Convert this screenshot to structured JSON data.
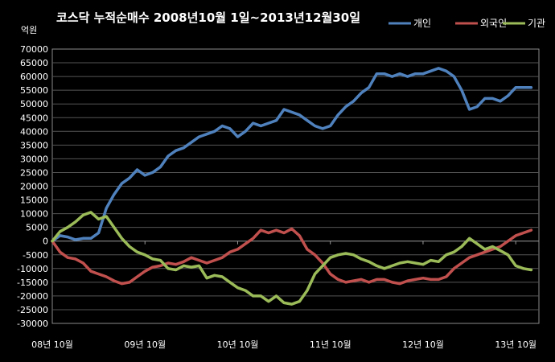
{
  "chart_data": {
    "type": "line",
    "title": "코스닥 누적순매수 2008년10월 1일~2013년12월30일",
    "unit_label": "억원",
    "ylim": [
      -30000,
      70000
    ],
    "y_ticks": [
      70000,
      65000,
      60000,
      55000,
      50000,
      45000,
      40000,
      35000,
      30000,
      25000,
      20000,
      15000,
      10000,
      5000,
      0,
      -5000,
      -10000,
      -15000,
      -20000,
      -25000,
      -30000
    ],
    "x_labels": [
      "08년 10월",
      "09년 10월",
      "10년 10월",
      "11년 10월",
      "12년 10월",
      "13년 10월"
    ],
    "legend_position": "top-right",
    "grid": true,
    "series": [
      {
        "name": "개인",
        "color": "#4f81bd",
        "points": [
          [
            "2008-10",
            0
          ],
          [
            "2008-11",
            2000
          ],
          [
            "2008-12",
            1500
          ],
          [
            "2009-01",
            500
          ],
          [
            "2009-02",
            1000
          ],
          [
            "2009-03",
            1000
          ],
          [
            "2009-04",
            3000
          ],
          [
            "2009-05",
            12000
          ],
          [
            "2009-06",
            17000
          ],
          [
            "2009-07",
            21000
          ],
          [
            "2009-08",
            23000
          ],
          [
            "2009-09",
            26000
          ],
          [
            "2009-10",
            24000
          ],
          [
            "2009-11",
            25000
          ],
          [
            "2009-12",
            27000
          ],
          [
            "2010-01",
            31000
          ],
          [
            "2010-02",
            33000
          ],
          [
            "2010-03",
            34000
          ],
          [
            "2010-04",
            36000
          ],
          [
            "2010-05",
            38000
          ],
          [
            "2010-06",
            39000
          ],
          [
            "2010-07",
            40000
          ],
          [
            "2010-08",
            42000
          ],
          [
            "2010-09",
            41000
          ],
          [
            "2010-10",
            38000
          ],
          [
            "2010-11",
            40000
          ],
          [
            "2010-12",
            43000
          ],
          [
            "2011-01",
            42000
          ],
          [
            "2011-02",
            43000
          ],
          [
            "2011-03",
            44000
          ],
          [
            "2011-04",
            48000
          ],
          [
            "2011-05",
            47000
          ],
          [
            "2011-06",
            46000
          ],
          [
            "2011-07",
            44000
          ],
          [
            "2011-08",
            42000
          ],
          [
            "2011-09",
            41000
          ],
          [
            "2011-10",
            42000
          ],
          [
            "2011-11",
            46000
          ],
          [
            "2011-12",
            49000
          ],
          [
            "2012-01",
            51000
          ],
          [
            "2012-02",
            54000
          ],
          [
            "2012-03",
            56000
          ],
          [
            "2012-04",
            61000
          ],
          [
            "2012-05",
            61000
          ],
          [
            "2012-06",
            60000
          ],
          [
            "2012-07",
            61000
          ],
          [
            "2012-08",
            60000
          ],
          [
            "2012-09",
            61000
          ],
          [
            "2012-10",
            61000
          ],
          [
            "2012-11",
            62000
          ],
          [
            "2012-12",
            63000
          ],
          [
            "2013-01",
            62000
          ],
          [
            "2013-02",
            60000
          ],
          [
            "2013-03",
            55000
          ],
          [
            "2013-04",
            48000
          ],
          [
            "2013-05",
            49000
          ],
          [
            "2013-06",
            52000
          ],
          [
            "2013-07",
            52000
          ],
          [
            "2013-08",
            51000
          ],
          [
            "2013-09",
            53000
          ],
          [
            "2013-10",
            56000
          ],
          [
            "2013-11",
            56000
          ],
          [
            "2013-12",
            56000
          ]
        ]
      },
      {
        "name": "외국인",
        "color": "#c0504d",
        "points": [
          [
            "2008-10",
            0
          ],
          [
            "2008-11",
            -4000
          ],
          [
            "2008-12",
            -6000
          ],
          [
            "2009-01",
            -6500
          ],
          [
            "2009-02",
            -8000
          ],
          [
            "2009-03",
            -11000
          ],
          [
            "2009-04",
            -12000
          ],
          [
            "2009-05",
            -13000
          ],
          [
            "2009-06",
            -14500
          ],
          [
            "2009-07",
            -15500
          ],
          [
            "2009-08",
            -15000
          ],
          [
            "2009-09",
            -13000
          ],
          [
            "2009-10",
            -11000
          ],
          [
            "2009-11",
            -9500
          ],
          [
            "2009-12",
            -9000
          ],
          [
            "2010-01",
            -8000
          ],
          [
            "2010-02",
            -8500
          ],
          [
            "2010-03",
            -7500
          ],
          [
            "2010-04",
            -6000
          ],
          [
            "2010-05",
            -7000
          ],
          [
            "2010-06",
            -8000
          ],
          [
            "2010-07",
            -7000
          ],
          [
            "2010-08",
            -6000
          ],
          [
            "2010-09",
            -4000
          ],
          [
            "2010-10",
            -3000
          ],
          [
            "2010-11",
            -1000
          ],
          [
            "2010-12",
            1000
          ],
          [
            "2011-01",
            4000
          ],
          [
            "2011-02",
            3000
          ],
          [
            "2011-03",
            4000
          ],
          [
            "2011-04",
            3000
          ],
          [
            "2011-05",
            4500
          ],
          [
            "2011-06",
            2000
          ],
          [
            "2011-07",
            -3000
          ],
          [
            "2011-08",
            -5000
          ],
          [
            "2011-09",
            -8000
          ],
          [
            "2011-10",
            -12000
          ],
          [
            "2011-11",
            -14000
          ],
          [
            "2011-12",
            -15000
          ],
          [
            "2012-01",
            -14500
          ],
          [
            "2012-02",
            -14000
          ],
          [
            "2012-03",
            -15000
          ],
          [
            "2012-04",
            -14000
          ],
          [
            "2012-05",
            -14000
          ],
          [
            "2012-06",
            -15000
          ],
          [
            "2012-07",
            -15500
          ],
          [
            "2012-08",
            -14500
          ],
          [
            "2012-09",
            -14000
          ],
          [
            "2012-10",
            -13500
          ],
          [
            "2012-11",
            -14000
          ],
          [
            "2012-12",
            -14000
          ],
          [
            "2013-01",
            -13000
          ],
          [
            "2013-02",
            -10000
          ],
          [
            "2013-03",
            -8000
          ],
          [
            "2013-04",
            -6000
          ],
          [
            "2013-05",
            -5000
          ],
          [
            "2013-06",
            -4000
          ],
          [
            "2013-07",
            -3000
          ],
          [
            "2013-08",
            -2000
          ],
          [
            "2013-09",
            0
          ],
          [
            "2013-10",
            2000
          ],
          [
            "2013-11",
            3000
          ],
          [
            "2013-12",
            4000
          ]
        ]
      },
      {
        "name": "기관",
        "color": "#9bbb59",
        "points": [
          [
            "2008-10",
            0
          ],
          [
            "2008-11",
            3500
          ],
          [
            "2008-12",
            5000
          ],
          [
            "2009-01",
            7000
          ],
          [
            "2009-02",
            9500
          ],
          [
            "2009-03",
            10500
          ],
          [
            "2009-04",
            8000
          ],
          [
            "2009-05",
            9000
          ],
          [
            "2009-06",
            5000
          ],
          [
            "2009-07",
            1000
          ],
          [
            "2009-08",
            -2000
          ],
          [
            "2009-09",
            -4000
          ],
          [
            "2009-10",
            -5000
          ],
          [
            "2009-11",
            -6500
          ],
          [
            "2009-12",
            -7000
          ],
          [
            "2010-01",
            -10000
          ],
          [
            "2010-02",
            -10500
          ],
          [
            "2010-03",
            -9000
          ],
          [
            "2010-04",
            -9500
          ],
          [
            "2010-05",
            -9000
          ],
          [
            "2010-06",
            -13500
          ],
          [
            "2010-07",
            -12500
          ],
          [
            "2010-08",
            -13000
          ],
          [
            "2010-09",
            -15000
          ],
          [
            "2010-10",
            -17000
          ],
          [
            "2010-11",
            -18000
          ],
          [
            "2010-12",
            -20000
          ],
          [
            "2011-01",
            -20000
          ],
          [
            "2011-02",
            -22000
          ],
          [
            "2011-03",
            -20000
          ],
          [
            "2011-04",
            -22500
          ],
          [
            "2011-05",
            -23000
          ],
          [
            "2011-06",
            -22000
          ],
          [
            "2011-07",
            -18000
          ],
          [
            "2011-08",
            -12000
          ],
          [
            "2011-09",
            -9000
          ],
          [
            "2011-10",
            -6000
          ],
          [
            "2011-11",
            -5000
          ],
          [
            "2011-12",
            -4500
          ],
          [
            "2012-01",
            -5000
          ],
          [
            "2012-02",
            -6500
          ],
          [
            "2012-03",
            -7500
          ],
          [
            "2012-04",
            -9000
          ],
          [
            "2012-05",
            -10000
          ],
          [
            "2012-06",
            -9000
          ],
          [
            "2012-07",
            -8000
          ],
          [
            "2012-08",
            -7500
          ],
          [
            "2012-09",
            -8000
          ],
          [
            "2012-10",
            -8500
          ],
          [
            "2012-11",
            -7000
          ],
          [
            "2012-12",
            -7500
          ],
          [
            "2013-01",
            -5000
          ],
          [
            "2013-02",
            -4000
          ],
          [
            "2013-03",
            -2000
          ],
          [
            "2013-04",
            1000
          ],
          [
            "2013-05",
            -1000
          ],
          [
            "2013-06",
            -3000
          ],
          [
            "2013-07",
            -2000
          ],
          [
            "2013-08",
            -3500
          ],
          [
            "2013-09",
            -5000
          ],
          [
            "2013-10",
            -9000
          ],
          [
            "2013-11",
            -10000
          ],
          [
            "2013-12",
            -10500
          ]
        ]
      }
    ]
  }
}
